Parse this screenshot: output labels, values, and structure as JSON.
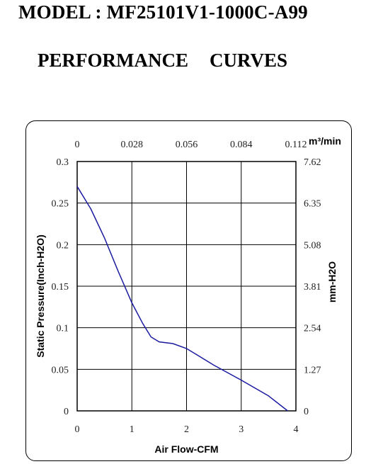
{
  "header": {
    "model_title": "MODEL : MF25101V1-1000C-A99",
    "perf_word1": "PERFORMANCE",
    "perf_word2": "CURVES"
  },
  "chart_data": {
    "type": "line",
    "title": "",
    "xlabel": "Air Flow-CFM",
    "ylabel": "Static Pressure(Inch-H2O)",
    "y2label": "mm-H2O",
    "x2label": "m³/min",
    "xlim": [
      0,
      4
    ],
    "ylim": [
      0,
      0.3
    ],
    "grid": true,
    "x_ticks": [
      "0",
      "1",
      "2",
      "3",
      "4"
    ],
    "y_ticks": [
      "0",
      "0.05",
      "0.1",
      "0.15",
      "0.2",
      "0.25",
      "0.3"
    ],
    "x2_ticks": [
      "0",
      "0.028",
      "0.056",
      "0.084",
      "0.112"
    ],
    "y2_ticks": [
      "0",
      "1.27",
      "2.54",
      "3.81",
      "5.08",
      "6.35",
      "7.62"
    ],
    "series": [
      {
        "color": "#1a1aa0",
        "x": [
          0,
          0.25,
          0.5,
          0.75,
          1.0,
          1.2,
          1.35,
          1.5,
          1.75,
          2.0,
          2.2,
          2.5,
          3.0,
          3.5,
          3.85
        ],
        "y": [
          0.27,
          0.243,
          0.208,
          0.168,
          0.13,
          0.105,
          0.089,
          0.083,
          0.081,
          0.075,
          0.067,
          0.055,
          0.037,
          0.018,
          0.0
        ]
      }
    ]
  }
}
